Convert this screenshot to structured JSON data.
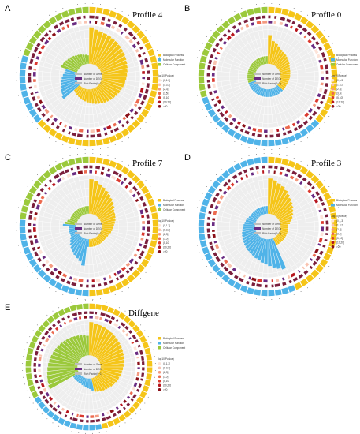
{
  "figure": {
    "background": "#ffffff"
  },
  "colors": {
    "biological_process": "#F5C518",
    "molecular_function": "#4FB3E8",
    "cellular_component": "#9BC93B",
    "bg_ring": "#EEEEEE",
    "bar_dark": "#7B1F3C",
    "bar_purple": "#6A2C82",
    "gray_bar": "#BDBDBD",
    "pval_scale": [
      "#FDE3D8",
      "#F9C3B0",
      "#F49A80",
      "#EC6A4F",
      "#DB3A2F",
      "#B7161E",
      "#8A0F17"
    ]
  },
  "common_legend": {
    "categories": [
      "Biological Process",
      "Molecular Function",
      "Cellular Component"
    ],
    "inner_items": [
      "Number of Gene",
      "Number of DEGs",
      "Rich Factor(0~1)"
    ],
    "pval_title": "-log10(Pvalue)",
    "pval_ranges": [
      "(0,1.3]",
      "(1.3,2]",
      "(2,3]",
      "(3,5]",
      "(5,10]",
      "(10,20]",
      ">20"
    ]
  },
  "chart_data": [
    {
      "type": "circular-enrichment",
      "panel": "A",
      "title": "Profile 4",
      "n_terms": 60,
      "category_counts": [
        38,
        10,
        12
      ],
      "legend_categories": [
        "Biological Process",
        "Molecular Function",
        "Cellular Component"
      ],
      "rich_factor": [
        0.95,
        0.9,
        0.88,
        0.86,
        0.85,
        0.83,
        0.82,
        0.8,
        0.78,
        0.76,
        0.74,
        0.72,
        0.7,
        0.68,
        0.66,
        0.64,
        0.62,
        0.6,
        0.58,
        0.56,
        0.54,
        0.52,
        0.5,
        0.48,
        0.46,
        0.44,
        0.42,
        0.4,
        0.38,
        0.36,
        0.34,
        0.32,
        0.3,
        0.28,
        0.26,
        0.24,
        0.22,
        0.2,
        0.55,
        0.5,
        0.48,
        0.45,
        0.42,
        0.4,
        0.38,
        0.35,
        0.32,
        0.3,
        0.45,
        0.42,
        0.4,
        0.38,
        0.36,
        0.34,
        0.32,
        0.3,
        0.28,
        0.26,
        0.24,
        0.22
      ]
    },
    {
      "type": "circular-enrichment",
      "panel": "B",
      "title": "Profile 0",
      "n_terms": 60,
      "category_counts": [
        22,
        20,
        18
      ],
      "legend_categories": [
        "Biological Process",
        "Molecular Function",
        "Cellular Component"
      ],
      "rich_factor": [
        0.75,
        0.6,
        0.55,
        0.5,
        0.45,
        0.42,
        0.4,
        0.38,
        0.35,
        0.33,
        0.3,
        0.28,
        0.27,
        0.26,
        0.25,
        0.24,
        0.23,
        0.22,
        0.21,
        0.2,
        0.2,
        0.2,
        0.2,
        0.2,
        0.2,
        0.2,
        0.2,
        0.2,
        0.2,
        0.2,
        0.2,
        0.2,
        0.2,
        0.2,
        0.2,
        0.2,
        0.2,
        0.2,
        0.2,
        0.2,
        0.2,
        0.2,
        0.2,
        0.2,
        0.2,
        0.2,
        0.2,
        0.2,
        0.2,
        0.2,
        0.2,
        0.2,
        0.2,
        0.2,
        0.2,
        0.2,
        0.2,
        0.2,
        0.2,
        0.2
      ]
    },
    {
      "type": "circular-enrichment",
      "panel": "C",
      "title": "Profile 7",
      "n_terms": 60,
      "category_counts": [
        30,
        16,
        14
      ],
      "legend_categories": [
        "Biological Process",
        "Molecular Function",
        "Cellular Component"
      ],
      "rich_factor": [
        0.9,
        0.86,
        0.8,
        0.75,
        0.7,
        0.65,
        0.6,
        0.55,
        0.5,
        0.45,
        0.42,
        0.4,
        0.38,
        0.35,
        0.32,
        0.3,
        0.28,
        0.26,
        0.24,
        0.22,
        0.2,
        0.2,
        0.2,
        0.2,
        0.2,
        0.2,
        0.2,
        0.2,
        0.2,
        0.2,
        0.2,
        0.7,
        0.6,
        0.55,
        0.5,
        0.45,
        0.4,
        0.35,
        0.3,
        0.25,
        0.2,
        0.2,
        0.2,
        0.2,
        0.2,
        0.35,
        0.3,
        0.25,
        0.2,
        0.2,
        0.2,
        0.2,
        0.2,
        0.2,
        0.2,
        0.2,
        0.2,
        0.2,
        0.2,
        0.2
      ]
    },
    {
      "type": "circular-enrichment",
      "panel": "D",
      "title": "Profile 3",
      "n_terms": 60,
      "category_counts": [
        26,
        34,
        0
      ],
      "legend_categories": [
        "Biological Process",
        "Molecular Function"
      ],
      "rich_factor": [
        0.92,
        0.88,
        0.82,
        0.78,
        0.72,
        0.66,
        0.6,
        0.55,
        0.5,
        0.45,
        0.4,
        0.35,
        0.3,
        0.25,
        0.2,
        0.2,
        0.2,
        0.2,
        0.2,
        0.2,
        0.2,
        0.2,
        0.2,
        0.2,
        0.2,
        0.2,
        0.85,
        0.8,
        0.75,
        0.7,
        0.66,
        0.62,
        0.58,
        0.55,
        0.52,
        0.5,
        0.48,
        0.46,
        0.44,
        0.42,
        0.4,
        0.38,
        0.36,
        0.34,
        0.32,
        0.3,
        0.28,
        0.26,
        0.24,
        0.22,
        0.2,
        0.2,
        0.2,
        0.2,
        0.2,
        0.2,
        0.2,
        0.2,
        0.2,
        0.2
      ]
    },
    {
      "type": "circular-enrichment",
      "panel": "E",
      "title": "Diffgene",
      "n_terms": 60,
      "category_counts": [
        28,
        12,
        20
      ],
      "legend_categories": [
        "Biological Process",
        "Molecular Function",
        "Cellular Component"
      ],
      "rich_factor": [
        0.95,
        0.92,
        0.9,
        0.88,
        0.86,
        0.84,
        0.82,
        0.8,
        0.78,
        0.76,
        0.74,
        0.72,
        0.7,
        0.68,
        0.66,
        0.64,
        0.62,
        0.6,
        0.58,
        0.56,
        0.54,
        0.52,
        0.5,
        0.48,
        0.46,
        0.44,
        0.42,
        0.4,
        0.35,
        0.3,
        0.28,
        0.26,
        0.24,
        0.22,
        0.2,
        0.2,
        0.2,
        0.2,
        0.2,
        0.2,
        0.95,
        0.92,
        0.9,
        0.88,
        0.86,
        0.84,
        0.82,
        0.8,
        0.78,
        0.76,
        0.74,
        0.72,
        0.7,
        0.68,
        0.66,
        0.64,
        0.62,
        0.6,
        0.58,
        0.56
      ]
    }
  ]
}
